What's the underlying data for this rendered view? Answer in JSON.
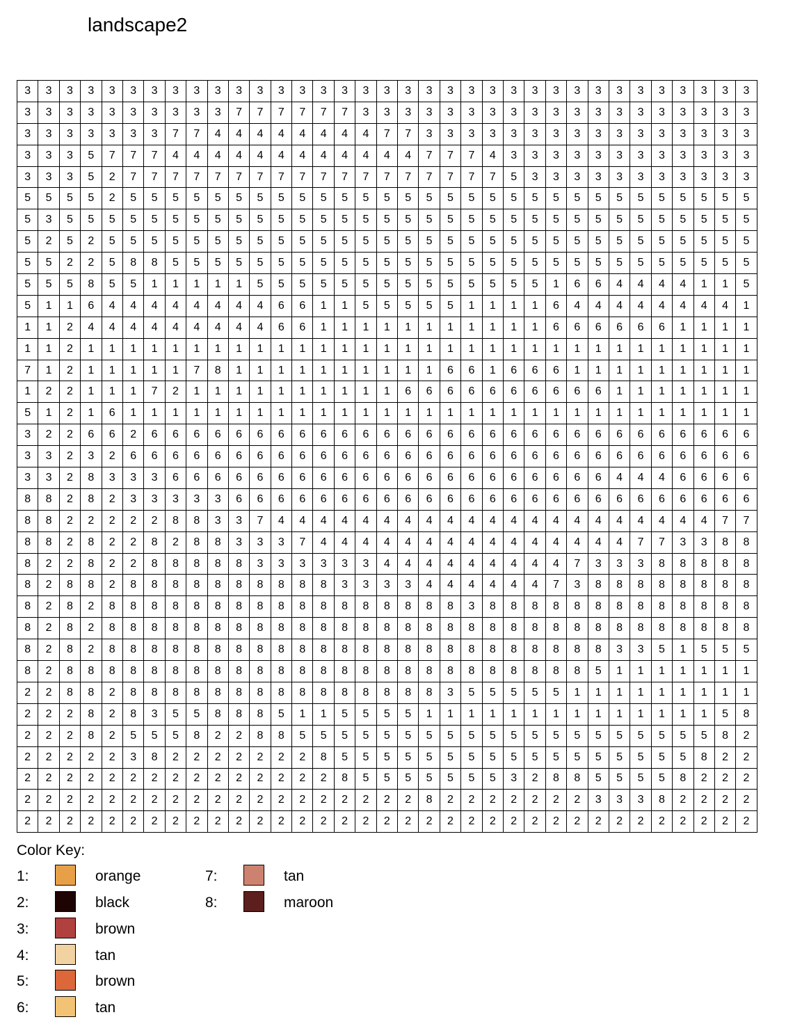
{
  "title": "landscape2",
  "grid": [
    "33333333333333333333333333333333333",
    "33333333337777773333333333333333333",
    "33333337744444444773333333333333333",
    "33357774444444444447774333333333333",
    "33352777777777777777777533333333333",
    "55552555555555555555555555555555555",
    "53555555555555555555555555555555555",
    "52525555555555555555555555555555555",
    "55225885555555555555555555555555555",
    "55585511111555555555555551664444115",
    "51164444444466115555511116444444441",
    "11244444444466111111111116666661111",
    "11211111111111111111111111111111111",
    "71211111781111111111661666111111111",
    "12211172111111111166666666661111111",
    "51216111111111111111111111111111111",
    "32266266666666666666666666666666666",
    "33232666666666666666666666666666666",
    "33283336666666666666666666664446666",
    "88282333336666666666666666666666666",
    "88222228833744444444444444444444477",
    "88282282883337444444444444444773388",
    "82282288888333333444444444733388888",
    "82882888888888833334444447388888888",
    "82828888888888888888838888888888888",
    "82828888888888888888888888888888888",
    "82828888888888888888888888883351555",
    "82888888888888888888888888851111111",
    "22882888888888888888355555111111111",
    "22282835588851155551111111111111158",
    "22282555822885555555555555555555582",
    "22222382222222855555555555555555822",
    "22222222222222285555555328855558222",
    "22222222222222222228222222233382222",
    "22222222222222222222222222222222222"
  ],
  "key": {
    "title": "Color Key:",
    "items": [
      {
        "num": "1:",
        "label": "orange",
        "color": "#E8A048"
      },
      {
        "num": "2:",
        "label": "black",
        "color": "#1E0504"
      },
      {
        "num": "3:",
        "label": "brown",
        "color": "#B1413F"
      },
      {
        "num": "4:",
        "label": "tan",
        "color": "#F1D2A0"
      },
      {
        "num": "5:",
        "label": "brown",
        "color": "#DB673A"
      },
      {
        "num": "6:",
        "label": "tan",
        "color": "#F2C374"
      },
      {
        "num": "7:",
        "label": "tan",
        "color": "#CD8270"
      },
      {
        "num": "8:",
        "label": "maroon",
        "color": "#5C1F1D"
      }
    ]
  }
}
